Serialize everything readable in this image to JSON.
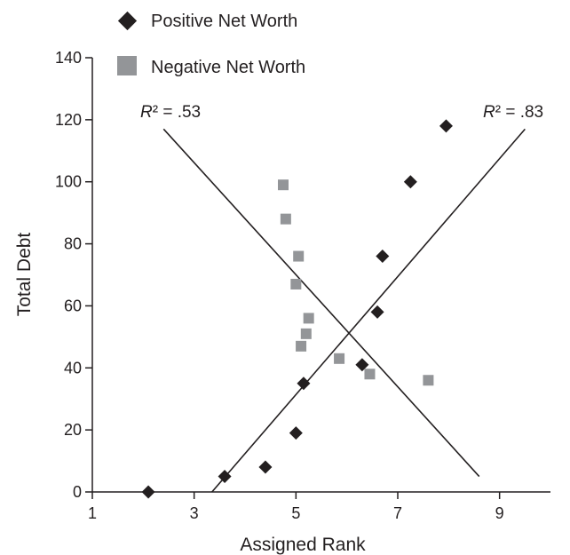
{
  "chart_data": {
    "type": "scatter",
    "xlabel": "Assigned Rank",
    "ylabel": "Total Debt",
    "xlim": [
      1,
      10
    ],
    "ylim": [
      0,
      140
    ],
    "xticks": [
      1,
      3,
      5,
      7,
      9
    ],
    "yticks": [
      0,
      20,
      40,
      60,
      80,
      100,
      120,
      140
    ],
    "grid": false,
    "legend_position": "top-left",
    "series": [
      {
        "name": "Positive Net Worth",
        "marker": "diamond",
        "color": "#231f20",
        "points": [
          {
            "x": 2.1,
            "y": 0
          },
          {
            "x": 3.6,
            "y": 5
          },
          {
            "x": 4.4,
            "y": 8
          },
          {
            "x": 5.0,
            "y": 19
          },
          {
            "x": 5.15,
            "y": 35
          },
          {
            "x": 6.3,
            "y": 41
          },
          {
            "x": 6.6,
            "y": 58
          },
          {
            "x": 6.7,
            "y": 76
          },
          {
            "x": 7.25,
            "y": 100
          },
          {
            "x": 7.95,
            "y": 118
          }
        ],
        "trendline": {
          "x": [
            3.35,
            9.5
          ],
          "y": [
            0,
            117
          ]
        },
        "r2_prefix": "R",
        "r2_suffix": "² = .83"
      },
      {
        "name": "Negative Net Worth",
        "marker": "square",
        "color": "#939598",
        "points": [
          {
            "x": 4.75,
            "y": 99
          },
          {
            "x": 4.8,
            "y": 88
          },
          {
            "x": 5.05,
            "y": 76
          },
          {
            "x": 5.0,
            "y": 67
          },
          {
            "x": 5.25,
            "y": 56
          },
          {
            "x": 5.2,
            "y": 51
          },
          {
            "x": 5.1,
            "y": 47
          },
          {
            "x": 5.85,
            "y": 43
          },
          {
            "x": 6.45,
            "y": 38
          },
          {
            "x": 7.6,
            "y": 36
          }
        ],
        "trendline": {
          "x": [
            2.4,
            8.6
          ],
          "y": [
            117,
            5
          ]
        },
        "r2_prefix": "R",
        "r2_suffix": "² = .53"
      }
    ]
  }
}
